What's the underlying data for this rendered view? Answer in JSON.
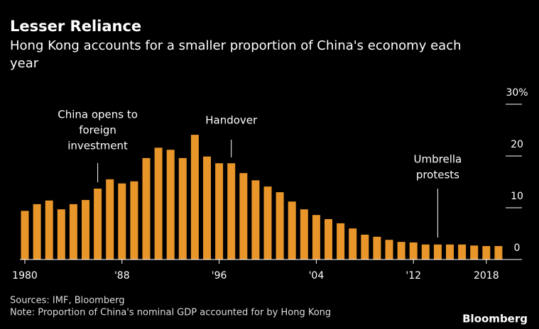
{
  "chart_data": {
    "type": "bar",
    "title": "Lesser Reliance",
    "subtitle": "Hong Kong accounts for a smaller proportion of China's economy each year",
    "categories": [
      "1980",
      null,
      null,
      null,
      null,
      null,
      null,
      null,
      "'88",
      null,
      null,
      null,
      null,
      null,
      null,
      null,
      "'96",
      null,
      null,
      null,
      null,
      null,
      null,
      null,
      "'04",
      null,
      null,
      null,
      null,
      null,
      null,
      null,
      "'12",
      null,
      null,
      null,
      null,
      null,
      "2018",
      null
    ],
    "values": [
      9.4,
      10.7,
      11.4,
      9.7,
      10.7,
      11.5,
      13.7,
      15.5,
      14.7,
      15.1,
      19.6,
      21.6,
      21.2,
      19.6,
      24.1,
      19.9,
      18.6,
      18.6,
      16.7,
      15.3,
      14.1,
      13.0,
      11.2,
      9.7,
      8.6,
      7.8,
      7.0,
      6.0,
      4.8,
      4.4,
      3.8,
      3.4,
      3.3,
      2.9,
      2.9,
      2.9,
      2.9,
      2.7,
      2.6,
      2.6
    ],
    "color": "#e8952a",
    "ylim": [
      0,
      30
    ],
    "yticks": [
      0,
      10,
      20,
      {
        "value": 30,
        "label": "30%"
      }
    ],
    "annotations": [
      {
        "lines": [
          "China opens to",
          "foreign",
          "investment"
        ]
      },
      {
        "lines": [
          "Handover"
        ]
      },
      {
        "lines": [
          "Umbrella",
          "protests"
        ]
      }
    ],
    "source": "Sources: IMF, Bloomberg",
    "note": "Note: Proportion of China's nominal GDP accounted for by Hong Kong",
    "brand": "Bloomberg"
  }
}
